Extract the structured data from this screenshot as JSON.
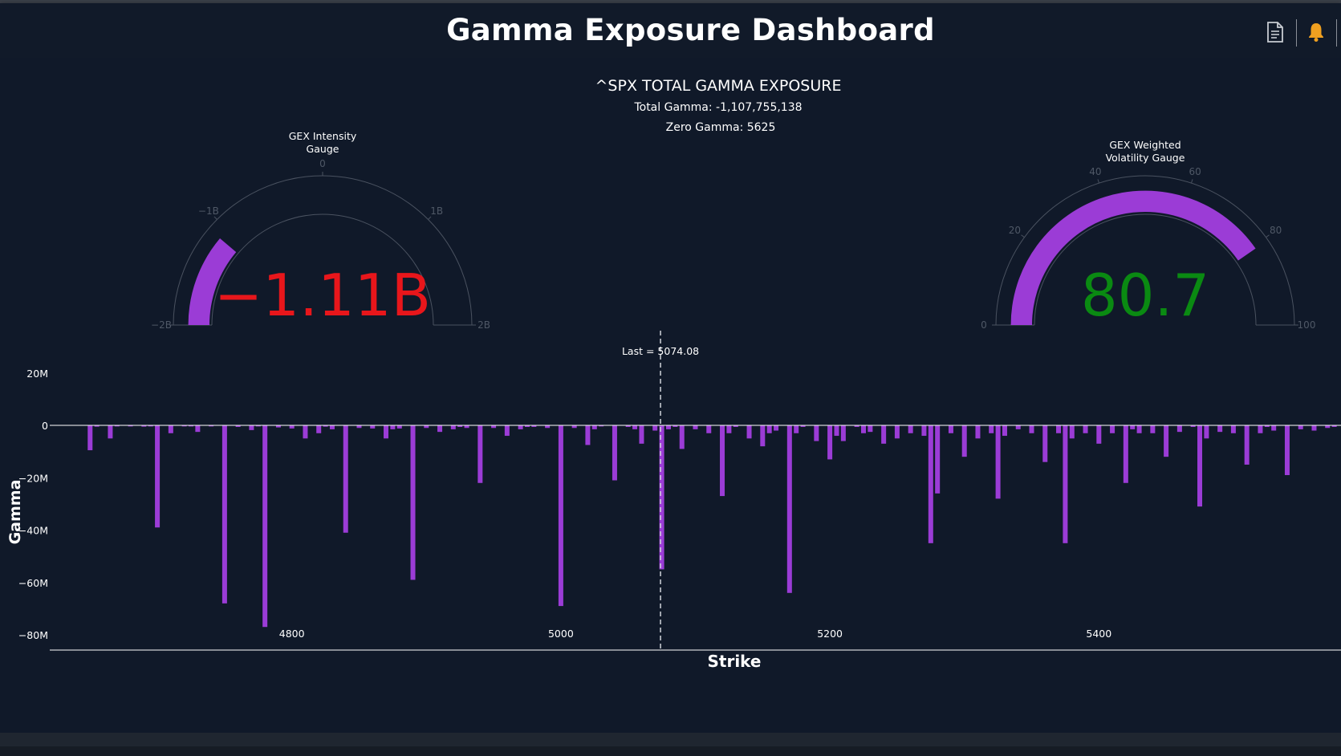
{
  "header": {
    "title": "Gamma Exposure Dashboard",
    "icons": [
      "document-icon",
      "bell-icon"
    ],
    "bell_color": "#f0a020"
  },
  "summary": {
    "title": "^SPX TOTAL GAMMA EXPOSURE",
    "total_gamma": "Total Gamma: -1,107,755,138",
    "zero_gamma": "Zero Gamma: 5625"
  },
  "gauges": [
    {
      "title_line1": "GEX Intensity",
      "title_line2": "Gauge",
      "value": -1107755138,
      "display": "−1.11B",
      "value_color": "#e8161b",
      "bar_color": "#9b3cd6",
      "range": [
        -2000000000,
        2000000000
      ],
      "ticks": [
        {
          "v": -2000000000,
          "label": "−2B"
        },
        {
          "v": -1000000000,
          "label": "−1B"
        },
        {
          "v": 0,
          "label": "0"
        },
        {
          "v": 1000000000,
          "label": "1B"
        },
        {
          "v": 2000000000,
          "label": "2B"
        }
      ]
    },
    {
      "title_line1": "GEX Weighted",
      "title_line2": "Volatility Gauge",
      "value": 80.7,
      "display": "80.7",
      "value_color": "#0a8a12",
      "bar_color": "#9b3cd6",
      "range": [
        0,
        100
      ],
      "ticks": [
        {
          "v": 0,
          "label": "0"
        },
        {
          "v": 20,
          "label": "20"
        },
        {
          "v": 40,
          "label": "40"
        },
        {
          "v": 60,
          "label": "60"
        },
        {
          "v": 80,
          "label": "80"
        },
        {
          "v": 100,
          "label": "100"
        }
      ]
    }
  ],
  "chart_data": {
    "type": "bar",
    "xlabel": "Strike",
    "ylabel": "Gamma",
    "xlim": [
      4620,
      5580
    ],
    "ylim": [
      -85,
      25
    ],
    "x_ticks": [
      {
        "v": 4800,
        "label": "4800"
      },
      {
        "v": 5000,
        "label": "5000"
      },
      {
        "v": 5200,
        "label": "5200"
      },
      {
        "v": 5400,
        "label": "5400"
      }
    ],
    "y_ticks": [
      {
        "v": 20,
        "label": "20M"
      },
      {
        "v": 0,
        "label": "0"
      },
      {
        "v": -20,
        "label": "−20M"
      },
      {
        "v": -40,
        "label": "−40M"
      },
      {
        "v": -60,
        "label": "−60M"
      },
      {
        "v": -80,
        "label": "−80M"
      }
    ],
    "bar_color": "#9b3cd6",
    "vline": {
      "x": 5074.08,
      "label": "Last = 5074.08"
    },
    "series": [
      {
        "x": [
          4650,
          4655,
          4665,
          4670,
          4680,
          4690,
          4695,
          4700,
          4710,
          4720,
          4725,
          4730,
          4740,
          4750,
          4760,
          4770,
          4775,
          4780,
          4790,
          4800,
          4810,
          4820,
          4825,
          4830,
          4840,
          4850,
          4860,
          4870,
          4875,
          4880,
          4890,
          4900,
          4910,
          4920,
          4925,
          4930,
          4940,
          4950,
          4960,
          4970,
          4975,
          4980,
          4990,
          5000,
          5010,
          5020,
          5025,
          5030,
          5040,
          5050,
          5055,
          5060,
          5070,
          5075,
          5080,
          5085,
          5090,
          5100,
          5110,
          5120,
          5125,
          5130,
          5140,
          5150,
          5155,
          5160,
          5170,
          5175,
          5180,
          5190,
          5200,
          5205,
          5210,
          5220,
          5225,
          5230,
          5240,
          5250,
          5260,
          5270,
          5275,
          5280,
          5290,
          5300,
          5310,
          5320,
          5325,
          5330,
          5340,
          5350,
          5360,
          5370,
          5375,
          5380,
          5390,
          5400,
          5410,
          5420,
          5425,
          5430,
          5440,
          5450,
          5460,
          5470,
          5475,
          5480,
          5490,
          5500,
          5510,
          5520,
          5525,
          5530,
          5540,
          5550,
          5560,
          5570,
          5575
        ],
        "values": [
          -9.5,
          -0.5,
          -5,
          -0.4,
          -0.4,
          -0.5,
          -0.4,
          -39,
          -3,
          -0.4,
          -0.4,
          -2.5,
          -0.4,
          -68,
          -0.6,
          -1.8,
          -0.4,
          -77,
          -0.8,
          -1.2,
          -5,
          -3,
          -0.5,
          -1.5,
          -41,
          -1,
          -1.2,
          -5,
          -1.5,
          -1.2,
          -59,
          -1,
          -2.5,
          -1.5,
          -0.6,
          -1,
          -22,
          -1,
          -4,
          -1.5,
          -0.6,
          -0.6,
          -1,
          -69,
          -1,
          -7.5,
          -1.5,
          -0.4,
          -21,
          -0.6,
          -1.5,
          -7,
          -2,
          -55,
          -1.5,
          -0.6,
          -9,
          -1.5,
          -3,
          -27,
          -3,
          -0.6,
          -5,
          -8,
          -3,
          -2,
          -64,
          -3,
          -0.6,
          -6,
          -13,
          -4,
          -6,
          -0.6,
          -3,
          -2.5,
          -7,
          -5,
          -3,
          -4,
          -45,
          -26,
          -3,
          -12,
          -5,
          -3,
          -28,
          -4,
          -1.5,
          -3,
          -14,
          -3,
          -45,
          -5,
          -3,
          -7,
          -3,
          -22,
          -1.5,
          -3,
          -3,
          -12,
          -2.5,
          -0.6,
          -31,
          -5,
          -2.5,
          -3,
          -15,
          -3,
          -0.6,
          -2,
          -19,
          -1.5,
          -2,
          -1,
          -0.6
        ]
      }
    ]
  }
}
